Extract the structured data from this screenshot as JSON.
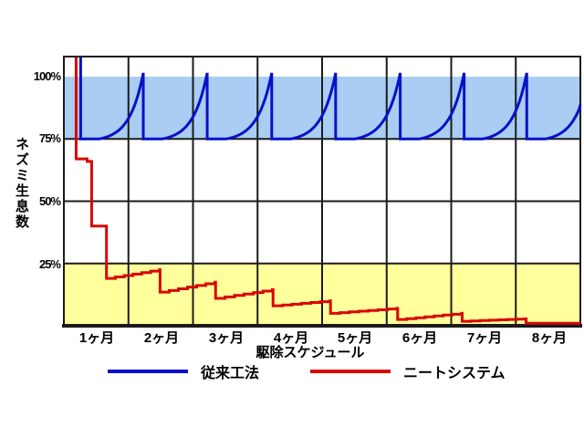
{
  "page": {
    "background": "#ffffff"
  },
  "chart_data": {
    "type": "line",
    "title": "",
    "xlabel": "駆除スケジュール",
    "ylabel": "ネズミ生息数",
    "categories": [
      "1ヶ月",
      "2ヶ月",
      "3ヶ月",
      "4ヶ月",
      "5ヶ月",
      "6ヶ月",
      "7ヶ月",
      "8ヶ月"
    ],
    "y_ticks": [
      {
        "label": "100%",
        "value": 100
      },
      {
        "label": "75%",
        "value": 75
      },
      {
        "label": "50%",
        "value": 50
      },
      {
        "label": "25%",
        "value": 25
      }
    ],
    "axis_ranges": {
      "x_months": [
        0,
        8
      ],
      "y_percent": [
        0,
        108
      ]
    },
    "grid": {
      "vertical_every_month": 1,
      "horizontal_at_percent": [
        75,
        50,
        25
      ],
      "color": "#1b1b1b"
    },
    "bands": [
      {
        "name": "upper-band-75-100",
        "from_percent": 75,
        "to_percent": 100,
        "color": "#a9cdf3"
      },
      {
        "name": "lower-band-0-25",
        "from_percent": 0,
        "to_percent": 25,
        "color": "#ffff9c"
      }
    ],
    "series": [
      {
        "name": "従来工法",
        "color": "#0a10c8",
        "shape": "sawtooth_exponential",
        "description": "population drops to 75% at each treatment then regrows to ~101% within the month",
        "baseline_percent": 75,
        "peak_percent": 101.5,
        "start_drop_month": 0.26,
        "start_top_percent": 108,
        "spike_months": [
          1.23,
          2.22,
          3.22,
          4.21,
          5.21,
          6.2,
          7.17
        ],
        "flat_fraction": 0.3,
        "end_month": 8,
        "end_value_percent": 88
      },
      {
        "name": "ニートシステム",
        "color": "#d90703",
        "shape": "staircase",
        "description": "population steps steadily down toward ~1%",
        "points": [
          [
            0.19,
            108
          ],
          [
            0.19,
            67
          ],
          [
            0.36,
            67
          ],
          [
            0.36,
            66
          ],
          [
            0.43,
            66
          ],
          [
            0.43,
            40
          ],
          [
            0.62,
            40
          ],
          [
            0.66,
            39
          ],
          [
            0.66,
            19
          ],
          [
            1.48,
            22.5
          ],
          [
            1.49,
            13.5
          ],
          [
            2.34,
            17.5
          ],
          [
            2.35,
            11
          ],
          [
            3.23,
            14.5
          ],
          [
            3.24,
            8
          ],
          [
            4.12,
            10
          ],
          [
            4.13,
            5
          ],
          [
            5.16,
            7
          ],
          [
            5.17,
            2.5
          ],
          [
            6.16,
            5
          ],
          [
            6.17,
            1.8
          ],
          [
            7.15,
            2.8
          ],
          [
            7.16,
            1.0
          ],
          [
            8.0,
            1.0
          ]
        ]
      }
    ],
    "legend": [
      {
        "label": "従来工法",
        "color": "#0a10c8"
      },
      {
        "label": "ニートシステム",
        "color": "#d90703"
      }
    ],
    "layout_hints": {
      "legend_position": "bottom",
      "plot_border": true
    }
  }
}
